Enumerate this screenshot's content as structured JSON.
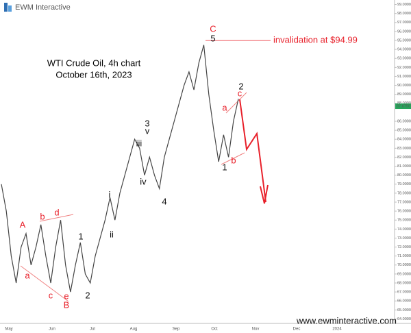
{
  "chart_data": {
    "type": "line",
    "title": "WTI Crude Oil, 4h chart",
    "subtitle": "October 16th, 2023",
    "logo": "EWM Interactive",
    "website": "www.ewminteractive.com",
    "x_labels": [
      "May",
      "Jun",
      "Jul",
      "Aug",
      "Sep",
      "Oct",
      "Nov",
      "Dec",
      "2024"
    ],
    "color": "#444444",
    "values": [
      79,
      76,
      71,
      68,
      72,
      73.5,
      70,
      72,
      74.5,
      71,
      68,
      72,
      75,
      70,
      67,
      70,
      72.5,
      69,
      68,
      71,
      73,
      75,
      77.5,
      75,
      78,
      80,
      82,
      84,
      83,
      80,
      82,
      80,
      78.5,
      82,
      84,
      86,
      88,
      90,
      91.5,
      89.5,
      92.5,
      94.5,
      89,
      85,
      81.5,
      84.5,
      82,
      86,
      88.5
    ],
    "ylim": [
      63.5,
      99.5
    ],
    "yticks": [
      {
        "value": 99,
        "label": "99.0000"
      },
      {
        "value": 98,
        "label": "98.0000"
      },
      {
        "value": 97,
        "label": "97.0000"
      },
      {
        "value": 96,
        "label": "96.0000"
      },
      {
        "value": 95,
        "label": "95.0000"
      },
      {
        "value": 94,
        "label": "94.0000"
      },
      {
        "value": 93,
        "label": "93.0000"
      },
      {
        "value": 92,
        "label": "92.0000"
      },
      {
        "value": 91,
        "label": "91.0000"
      },
      {
        "value": 90,
        "label": "90.0000"
      },
      {
        "value": 89,
        "label": "89.0000"
      },
      {
        "value": 88,
        "label": "88.0000"
      },
      {
        "value": 86,
        "label": "86.0000"
      },
      {
        "value": 85,
        "label": "85.0000"
      },
      {
        "value": 84,
        "label": "84.0000"
      },
      {
        "value": 83,
        "label": "83.0000"
      },
      {
        "value": 82,
        "label": "82.0000"
      },
      {
        "value": 81,
        "label": "81.0000"
      },
      {
        "value": 80,
        "label": "80.0000"
      },
      {
        "value": 79,
        "label": "79.0000"
      },
      {
        "value": 78,
        "label": "78.0000"
      },
      {
        "value": 77,
        "label": "77.0000"
      },
      {
        "value": 76,
        "label": "76.0000"
      },
      {
        "value": 75,
        "label": "75.0000"
      },
      {
        "value": 74,
        "label": "74.0000"
      },
      {
        "value": 73,
        "label": "73.0000"
      },
      {
        "value": 72,
        "label": "72.0000"
      },
      {
        "value": 71,
        "label": "71.0000"
      },
      {
        "value": 70,
        "label": "70.0000"
      },
      {
        "value": 69,
        "label": "69.0000"
      },
      {
        "value": 68,
        "label": "68.0000"
      },
      {
        "value": 67,
        "label": "67.0000"
      },
      {
        "value": 66,
        "label": "66.0000"
      },
      {
        "value": 65,
        "label": "65.0000"
      },
      {
        "value": 64,
        "label": "64.0000"
      }
    ],
    "last_price": {
      "value": 87.675,
      "label": "87.6750"
    },
    "invalidation": {
      "value": 94.99,
      "label": "invalidation at $94.99"
    },
    "annotations": [
      {
        "text": "C",
        "color": "#e8202a"
      },
      {
        "text": "5",
        "color": "#111111"
      },
      {
        "text": "2",
        "color": "#111111"
      },
      {
        "text": "c",
        "color": "#e8202a"
      },
      {
        "text": "a",
        "color": "#e8202a"
      },
      {
        "text": "b",
        "color": "#e8202a"
      },
      {
        "text": "1",
        "color": "#111111"
      },
      {
        "text": "3",
        "color": "#111111"
      },
      {
        "text": "v",
        "color": "#111111"
      },
      {
        "text": "iii",
        "color": "#111111"
      },
      {
        "text": "iv",
        "color": "#111111"
      },
      {
        "text": "4",
        "color": "#111111"
      },
      {
        "text": "i",
        "color": "#111111"
      },
      {
        "text": "ii",
        "color": "#111111"
      },
      {
        "text": "1",
        "color": "#111111"
      },
      {
        "text": "2",
        "color": "#111111"
      },
      {
        "text": "A",
        "color": "#e8202a"
      },
      {
        "text": "a",
        "color": "#e8202a"
      },
      {
        "text": "b",
        "color": "#e8202a"
      },
      {
        "text": "d",
        "color": "#e8202a"
      },
      {
        "text": "c",
        "color": "#e8202a"
      },
      {
        "text": "e",
        "color": "#e8202a"
      },
      {
        "text": "B",
        "color": "#e8202a"
      }
    ]
  }
}
